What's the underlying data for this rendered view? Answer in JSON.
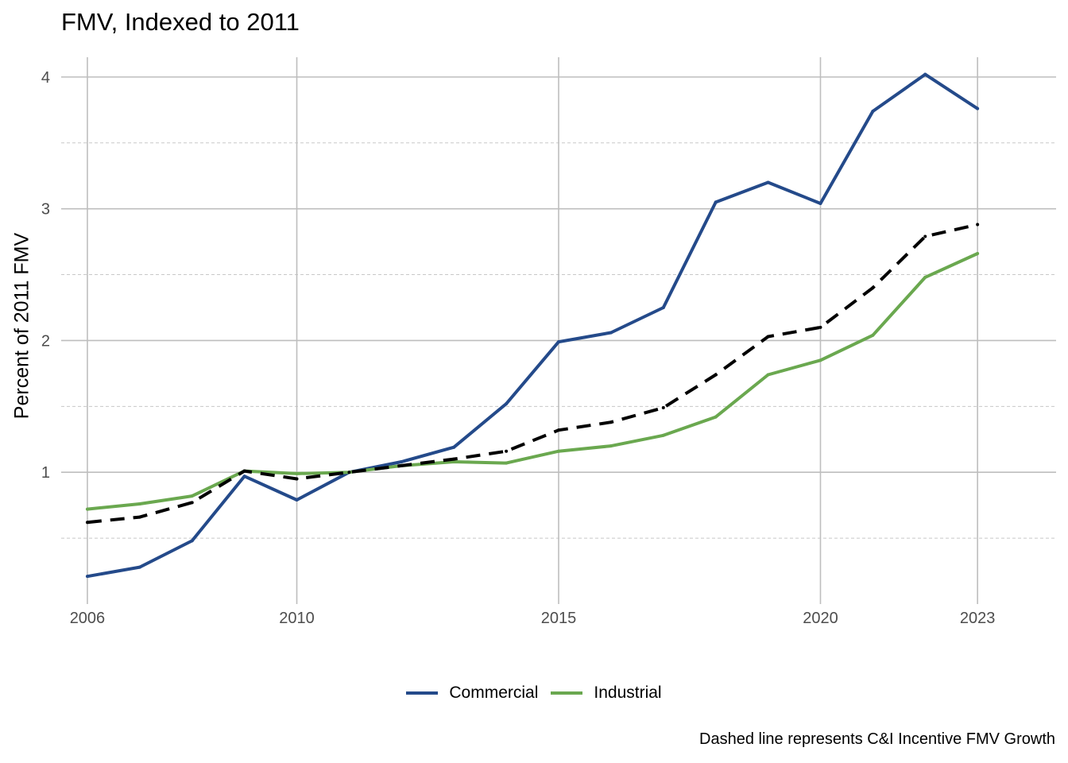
{
  "chart_data": {
    "type": "line",
    "title": "FMV, Indexed to 2011",
    "xlabel": "",
    "ylabel": "Percent of 2011 FMV",
    "caption": "Dashed line represents C&I Incentive FMV Growth",
    "x": [
      2006,
      2007,
      2008,
      2009,
      2010,
      2011,
      2012,
      2013,
      2014,
      2015,
      2016,
      2017,
      2018,
      2019,
      2020,
      2021,
      2022,
      2023
    ],
    "x_ticks": [
      2006,
      2010,
      2015,
      2020,
      2023
    ],
    "x_tick_labels": [
      "2006",
      "2010",
      "2015",
      "2020",
      "2023"
    ],
    "y_ticks": [
      1,
      2,
      3,
      4
    ],
    "y_tick_labels": [
      "1",
      "2",
      "3",
      "4"
    ],
    "xlim": [
      2005.5,
      2024.5
    ],
    "ylim": [
      0.0,
      4.15
    ],
    "grid": true,
    "legend_position": "bottom",
    "series": [
      {
        "name": "Commercial",
        "color": "#244A8A",
        "style": "solid",
        "values": [
          0.21,
          0.28,
          0.48,
          0.97,
          0.79,
          1.0,
          1.08,
          1.19,
          1.52,
          1.99,
          2.06,
          2.25,
          3.05,
          3.2,
          3.04,
          3.74,
          4.02,
          3.76
        ]
      },
      {
        "name": "Industrial",
        "color": "#6AA84F",
        "style": "solid",
        "values": [
          0.72,
          0.76,
          0.82,
          1.01,
          0.99,
          1.0,
          1.05,
          1.08,
          1.07,
          1.16,
          1.2,
          1.28,
          1.42,
          1.74,
          1.85,
          2.04,
          2.48,
          2.66
        ]
      },
      {
        "color": "#000000",
        "style": "dashed",
        "values": [
          0.62,
          0.66,
          0.77,
          1.01,
          0.95,
          1.0,
          1.05,
          1.1,
          1.16,
          1.32,
          1.38,
          1.49,
          1.74,
          2.03,
          2.1,
          2.4,
          2.79,
          2.88
        ]
      }
    ]
  }
}
